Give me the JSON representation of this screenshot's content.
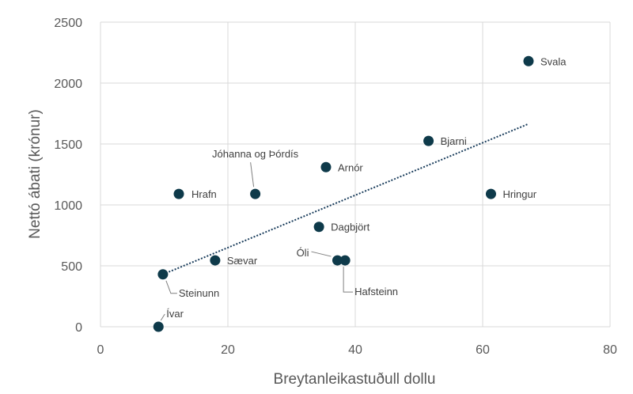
{
  "chart_data": {
    "type": "scatter",
    "xlabel": "Breytanleikastuðull dollu",
    "ylabel": "Nettó ábati (krónur)",
    "xlim": [
      0,
      80
    ],
    "ylim": [
      0,
      2500
    ],
    "xticks": [
      0,
      20,
      40,
      60,
      80
    ],
    "yticks": [
      0,
      500,
      1000,
      1500,
      2000,
      2500
    ],
    "grid": true,
    "marker_color": "#0e3a4a",
    "trendline": {
      "type": "linear",
      "style": "dotted",
      "x": [
        9.8,
        67.2
      ],
      "y": [
        430,
        1665
      ]
    },
    "points": [
      {
        "label": "Svala",
        "x": 67.2,
        "y": 2180
      },
      {
        "label": "Bjarni",
        "x": 51.5,
        "y": 1525
      },
      {
        "label": "Arnór",
        "x": 35.4,
        "y": 1310
      },
      {
        "label": "Jóhanna og Þórdís",
        "x": 24.3,
        "y": 1090
      },
      {
        "label": "Hrafn",
        "x": 12.3,
        "y": 1090
      },
      {
        "label": "Hringur",
        "x": 61.3,
        "y": 1090
      },
      {
        "label": "Dagbjört",
        "x": 34.3,
        "y": 820
      },
      {
        "label": "Sævar",
        "x": 18.0,
        "y": 545
      },
      {
        "label": "Óli",
        "x": 37.2,
        "y": 545
      },
      {
        "label": "Hafsteinn",
        "x": 38.4,
        "y": 545
      },
      {
        "label": "Steinunn",
        "x": 9.8,
        "y": 430
      },
      {
        "label": "Ívar",
        "x": 9.1,
        "y": 0
      }
    ]
  }
}
